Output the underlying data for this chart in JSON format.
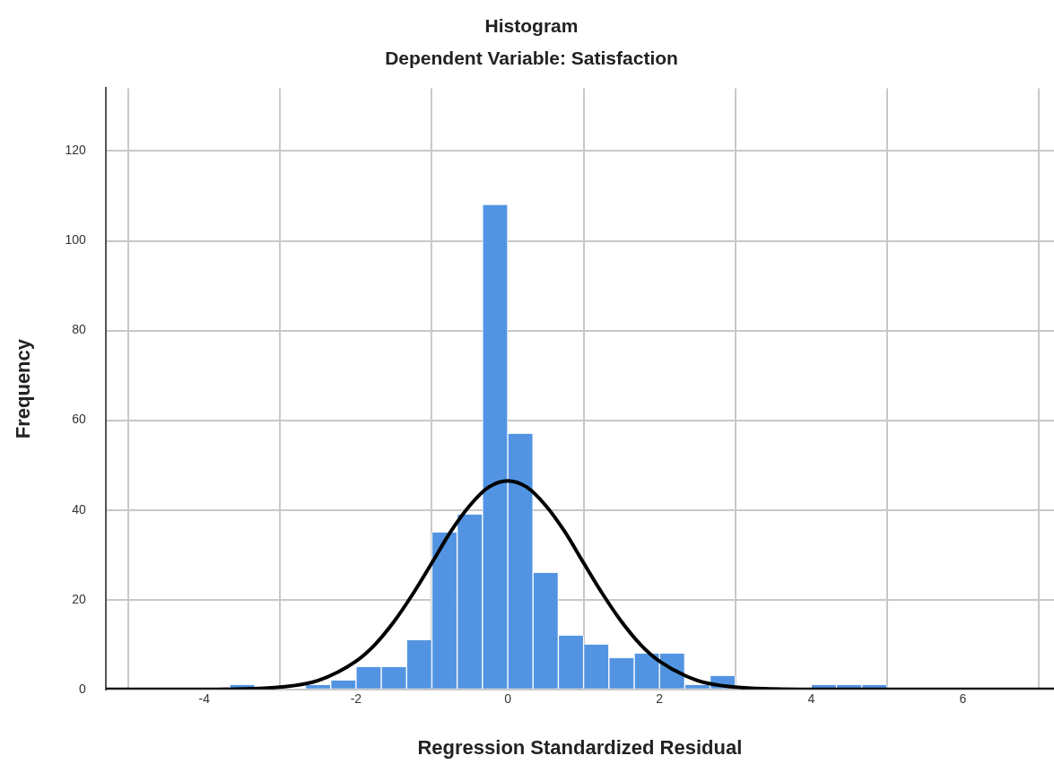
{
  "chart_data": {
    "type": "histogram",
    "title": "Histogram",
    "subtitle": "Dependent Variable: Satisfaction",
    "xlabel": "Regression Standardized Residual",
    "ylabel": "Frequency",
    "bins": [
      -3.667,
      -3.333,
      -3,
      -2.667,
      -2.333,
      -2,
      -1.667,
      -1.333,
      -1,
      -0.667,
      -0.333,
      0,
      0.333,
      0.667,
      1,
      1.333,
      1.667,
      2,
      2.333,
      2.667,
      3,
      3.333,
      3.667,
      4,
      4.333,
      4.667,
      5
    ],
    "values": [
      1,
      0,
      0,
      1,
      2,
      5,
      5,
      11,
      35,
      39,
      108,
      57,
      26,
      12,
      10,
      7,
      8,
      8,
      1,
      3,
      0,
      0,
      0,
      1,
      1,
      1
    ],
    "color": "#5294e2",
    "series": [
      {
        "type": "line",
        "color": "#000000",
        "x": [
          -5.3,
          -4,
          -3.5,
          -3,
          -2.5,
          -2,
          -1.75,
          -1.5,
          -1.25,
          -1,
          -0.75,
          -0.5,
          -0.25,
          0,
          0.25,
          0.5,
          0.75,
          1,
          1.25,
          1.5,
          1.75,
          2,
          2.5,
          3,
          3.5,
          4,
          7.2
        ],
        "values": [
          0,
          0,
          0.1,
          0.5,
          2,
          6.3,
          10,
          15.1,
          21.3,
          28.2,
          35.2,
          41,
          45.1,
          46.5,
          45.1,
          41,
          35.2,
          28.2,
          21.3,
          15.1,
          10,
          6.3,
          2,
          0.5,
          0.1,
          0,
          0
        ]
      }
    ],
    "xlim": [
      -5.3,
      7.2
    ],
    "xticks": [
      -4,
      -2,
      0,
      2,
      4,
      6
    ],
    "ylim": [
      0,
      134
    ],
    "yticks": [
      0,
      20,
      40,
      60,
      80,
      100,
      120
    ],
    "grid": true,
    "legend": false
  }
}
